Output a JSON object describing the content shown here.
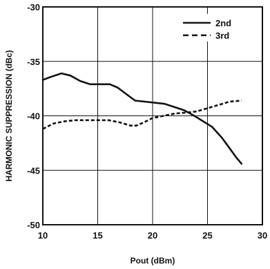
{
  "chart_data": {
    "type": "line",
    "title": "",
    "xlabel": "Pout (dBm)",
    "ylabel": "HARMONIC SUPPRESSION (dBc)",
    "xlim": [
      10,
      30
    ],
    "ylim": [
      -50,
      -30
    ],
    "xticks": [
      10,
      15,
      20,
      25,
      30
    ],
    "yticks": [
      -30,
      -35,
      -40,
      -45,
      -50
    ],
    "x_tick_labels": [
      "10",
      "15",
      "20",
      "25",
      "30"
    ],
    "y_tick_labels": [
      "-30",
      "-35",
      "-40",
      "-45",
      "-50"
    ],
    "grid": true,
    "legend_position": "top-right",
    "series": [
      {
        "name": "2nd",
        "style": "solid",
        "color": "#111111",
        "x": [
          10,
          10.8,
          11.7,
          12.5,
          13.4,
          14.3,
          15.2,
          16.1,
          16.8,
          17.6,
          18.4,
          19.3,
          20.2,
          21.1,
          22.0,
          22.9,
          23.8,
          24.6,
          25.4,
          26.3,
          27.1,
          27.6,
          28.1
        ],
        "y": [
          -36.7,
          -36.4,
          -36.1,
          -36.3,
          -36.8,
          -37.1,
          -37.1,
          -37.1,
          -37.4,
          -38.0,
          -38.6,
          -38.7,
          -38.8,
          -38.9,
          -39.2,
          -39.5,
          -40.0,
          -40.5,
          -41.0,
          -42.0,
          -43.1,
          -43.8,
          -44.4
        ]
      },
      {
        "name": "3rd",
        "style": "dashed",
        "color": "#111111",
        "x": [
          10,
          11.0,
          12.0,
          13.0,
          14.0,
          15.0,
          16.0,
          17.0,
          18.0,
          18.5,
          19.2,
          20.0,
          21.0,
          22.0,
          23.0,
          24.0,
          25.0,
          26.0,
          27.0,
          28.1
        ],
        "y": [
          -41.2,
          -40.7,
          -40.5,
          -40.4,
          -40.4,
          -40.4,
          -40.4,
          -40.6,
          -40.9,
          -40.9,
          -40.6,
          -40.2,
          -40.0,
          -39.8,
          -39.7,
          -39.6,
          -39.3,
          -39.0,
          -38.7,
          -38.6
        ]
      }
    ]
  }
}
